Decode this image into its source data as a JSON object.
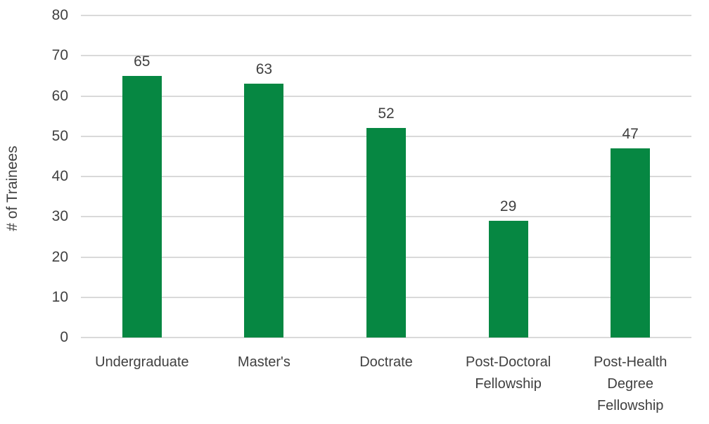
{
  "chart_data": {
    "type": "bar",
    "categories": [
      "Undergraduate",
      "Master's",
      "Doctrate",
      "Post-Doctoral Fellowship",
      "Post-Health Degree Fellowship"
    ],
    "values": [
      65,
      63,
      52,
      29,
      47
    ],
    "data_labels": [
      "65",
      "63",
      "52",
      "29",
      "47"
    ],
    "title": "",
    "xlabel": "",
    "ylabel": "# of Trainees",
    "ylim": [
      0,
      80
    ],
    "ytick_step": 10,
    "ytick_labels": [
      "0",
      "10",
      "20",
      "30",
      "40",
      "50",
      "60",
      "70",
      "80"
    ],
    "grid": "horizontal",
    "legend": "none",
    "colors": {
      "bar": "#068742",
      "gridline": "#D9D9D9",
      "text": "#404040",
      "background": "#FFFFFF"
    }
  }
}
